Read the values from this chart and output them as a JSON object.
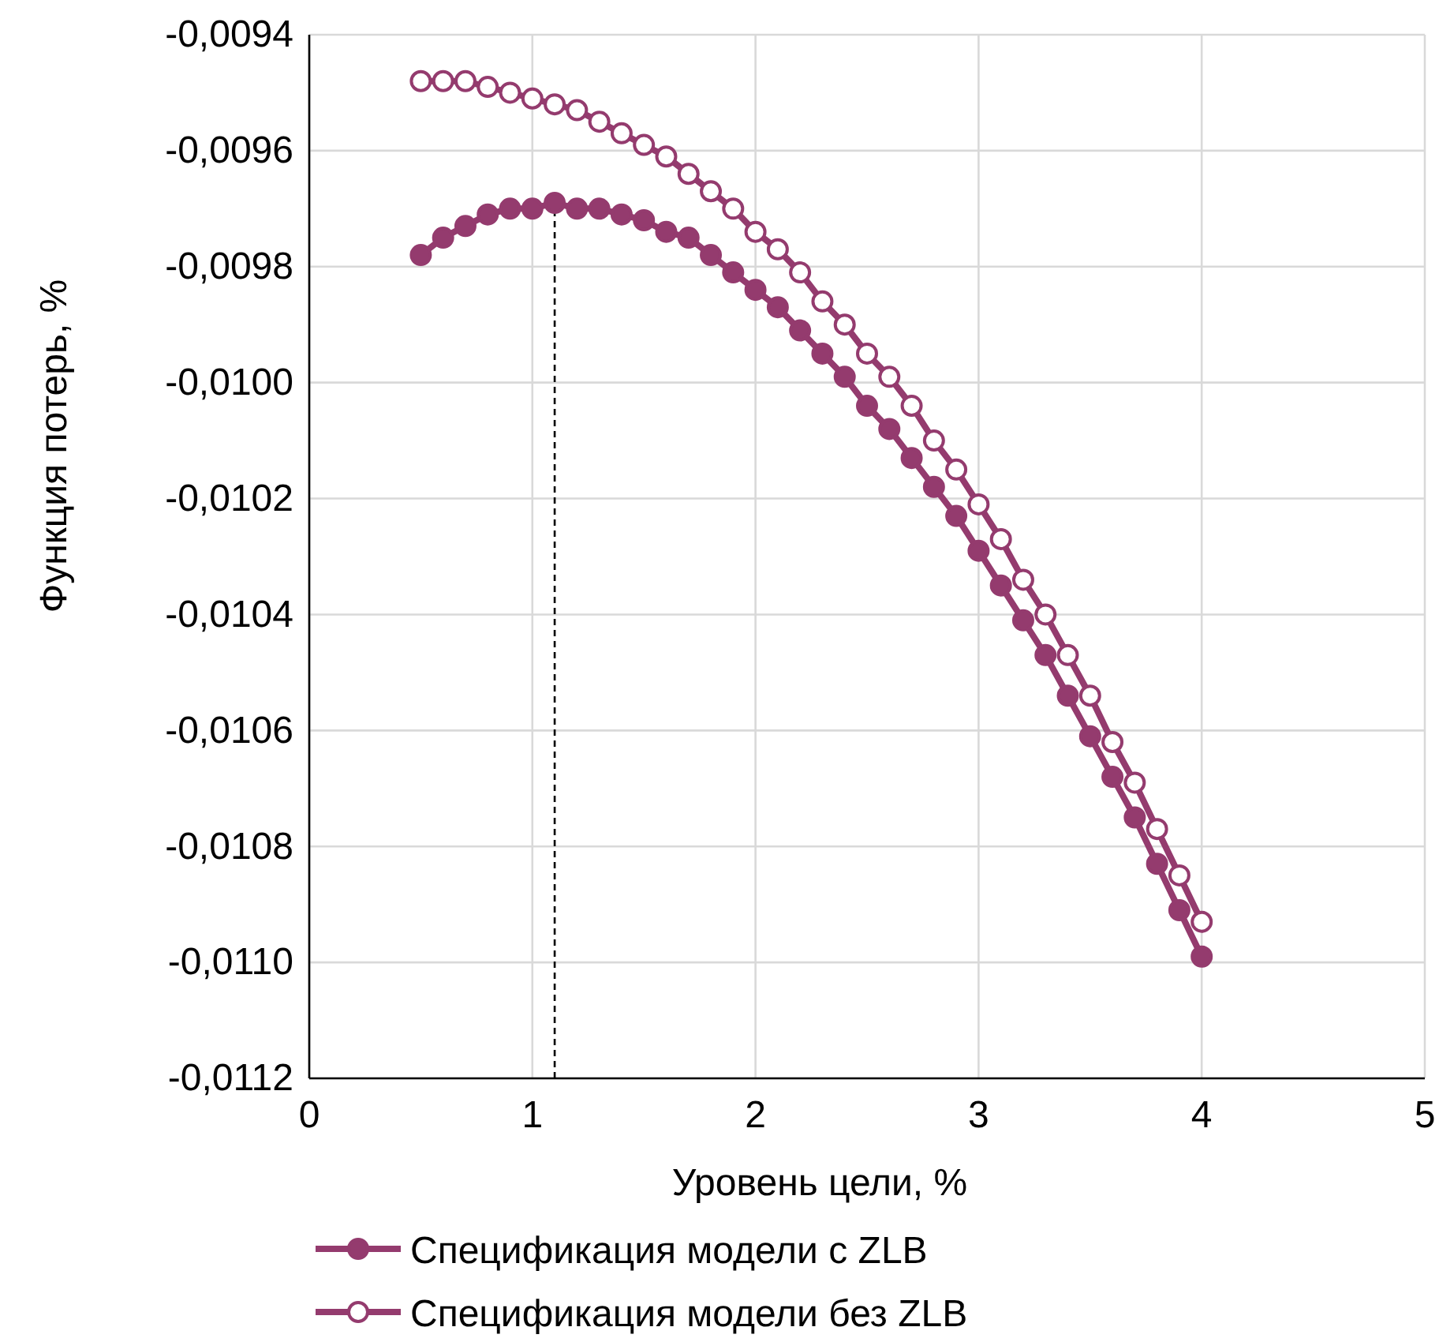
{
  "chart_data": {
    "type": "line",
    "xlabel": "Уровень цели, %",
    "ylabel": "Функция потерь, %",
    "xlim": [
      0,
      5
    ],
    "xticks": [
      0,
      1,
      2,
      3,
      4,
      5
    ],
    "ylim": [
      -0.0112,
      -0.0094
    ],
    "yticks": [
      {
        "value": -0.0112,
        "label": "-0,0112"
      },
      {
        "value": -0.011,
        "label": "-0,0110"
      },
      {
        "value": -0.0108,
        "label": "-0,0108"
      },
      {
        "value": -0.0106,
        "label": "-0,0106"
      },
      {
        "value": -0.0104,
        "label": "-0,0104"
      },
      {
        "value": -0.0102,
        "label": "-0,0102"
      },
      {
        "value": -0.01,
        "label": "-0,0100"
      },
      {
        "value": -0.0098,
        "label": "-0,0098"
      },
      {
        "value": -0.0096,
        "label": "-0,0096"
      },
      {
        "value": -0.0094,
        "label": "-0,0094"
      }
    ],
    "grid": true,
    "legend": "bottom",
    "marker": "circle",
    "line_style": "solid",
    "x": [
      0.5,
      0.6,
      0.7,
      0.8,
      0.9,
      1.0,
      1.1,
      1.2,
      1.3,
      1.4,
      1.5,
      1.6,
      1.7,
      1.8,
      1.9,
      2.0,
      2.1,
      2.2,
      2.3,
      2.4,
      2.5,
      2.6,
      2.7,
      2.8,
      2.9,
      3.0,
      3.1,
      3.2,
      3.3,
      3.4,
      3.5,
      3.6,
      3.7,
      3.8,
      3.9,
      4.0
    ],
    "series": [
      {
        "name": "Спецификация модели с ZLB",
        "color": "#943b6e",
        "values": [
          -0.00978,
          -0.00975,
          -0.00973,
          -0.00971,
          -0.0097,
          -0.0097,
          -0.00969,
          -0.0097,
          -0.0097,
          -0.00971,
          -0.00972,
          -0.00974,
          -0.00975,
          -0.00978,
          -0.00981,
          -0.00984,
          -0.00987,
          -0.00991,
          -0.00995,
          -0.00999,
          -0.01004,
          -0.01008,
          -0.01013,
          -0.01018,
          -0.01023,
          -0.01029,
          -0.01035,
          -0.01041,
          -0.01047,
          -0.01054,
          -0.01061,
          -0.01068,
          -0.01075,
          -0.01083,
          -0.01091,
          -0.01099
        ]
      },
      {
        "name": "Спецификация модели без ZLB",
        "color": "#943b6e",
        "values": [
          -0.00948,
          -0.00948,
          -0.00948,
          -0.00949,
          -0.0095,
          -0.00951,
          -0.00952,
          -0.00953,
          -0.00955,
          -0.00957,
          -0.00959,
          -0.00961,
          -0.00964,
          -0.00967,
          -0.0097,
          -0.00974,
          -0.00977,
          -0.00981,
          -0.00986,
          -0.0099,
          -0.00995,
          -0.00999,
          -0.01004,
          -0.0101,
          -0.01015,
          -0.01021,
          -0.01027,
          -0.01034,
          -0.0104,
          -0.01047,
          -0.01054,
          -0.01062,
          -0.01069,
          -0.01077,
          -0.01085,
          -0.01093
        ]
      }
    ],
    "ref_lines": [
      {
        "axis": "x",
        "value": 1.1,
        "color": "#000000",
        "line_style": "dashed"
      }
    ]
  }
}
